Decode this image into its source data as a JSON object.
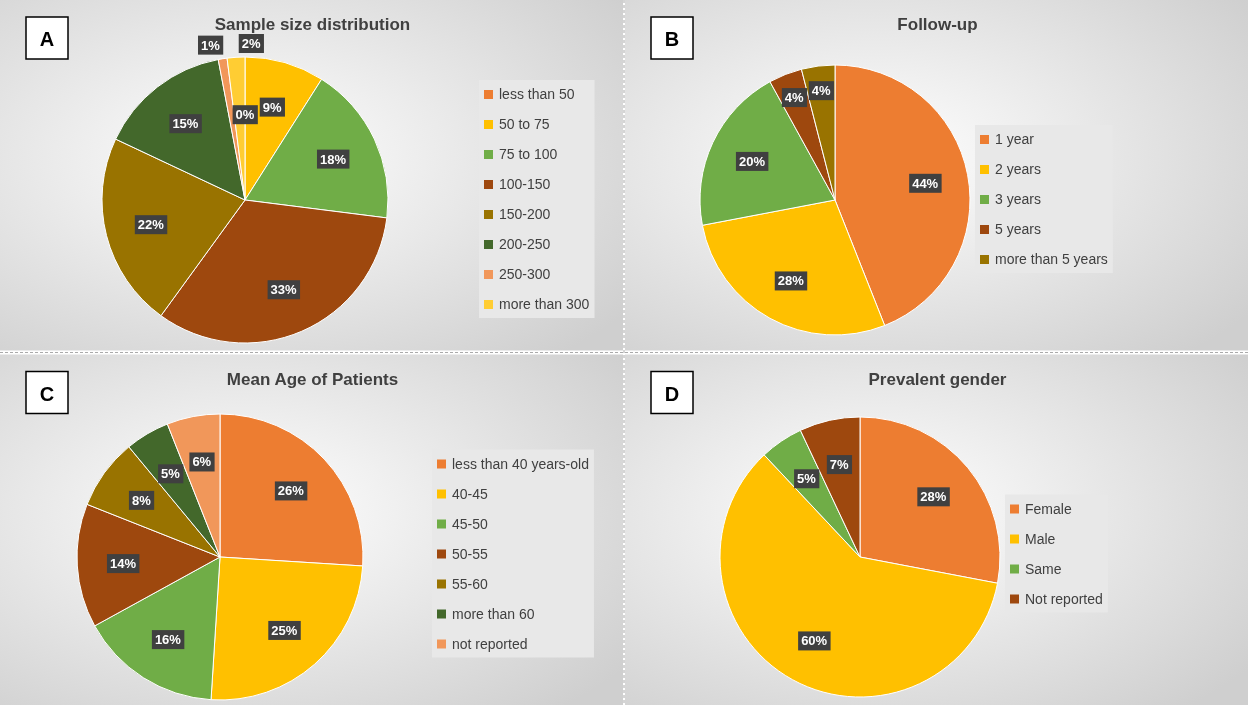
{
  "chart_data": [
    {
      "type": "pie",
      "title": "Sample size distribution",
      "annotations": [
        "A"
      ],
      "legend": "right",
      "categories": [
        "less than 50",
        "50 to 75",
        "75 to 100",
        "100-150",
        "150-200",
        "200-250",
        "250-300",
        "more than 300"
      ],
      "values": [
        0,
        9,
        18,
        33,
        22,
        15,
        1,
        2
      ],
      "value_labels": [
        "0%",
        "9%",
        "18%",
        "33%",
        "22%",
        "15%",
        "1%",
        "2%"
      ],
      "colors": [
        "#ed7d31",
        "#ffc000",
        "#70ad47",
        "#9e480e",
        "#997300",
        "#43682b",
        "#f1975a",
        "#ffcd33"
      ]
    },
    {
      "type": "pie",
      "title": "Follow-up",
      "annotations": [
        "B"
      ],
      "legend": "right",
      "categories": [
        "1 year",
        "2 years",
        "3 years",
        "5 years",
        "more than 5 years"
      ],
      "values": [
        44,
        28,
        20,
        4,
        4
      ],
      "value_labels": [
        "44%",
        "28%",
        "20%",
        "4%",
        "4%"
      ],
      "colors": [
        "#ed7d31",
        "#ffc000",
        "#70ad47",
        "#9e480e",
        "#997300"
      ]
    },
    {
      "type": "pie",
      "title": "Mean Age of Patients",
      "annotations": [
        "C"
      ],
      "legend": "right",
      "categories": [
        "less than 40 years-old",
        "40-45",
        "45-50",
        "50-55",
        "55-60",
        "more than 60",
        "not reported"
      ],
      "values": [
        26,
        25,
        16,
        14,
        8,
        5,
        6
      ],
      "value_labels": [
        "26%",
        "25%",
        "16%",
        "14%",
        "8%",
        "5%",
        "6%"
      ],
      "colors": [
        "#ed7d31",
        "#ffc000",
        "#70ad47",
        "#9e480e",
        "#997300",
        "#43682b",
        "#f1975a"
      ]
    },
    {
      "type": "pie",
      "title": "Prevalent gender",
      "annotations": [
        "D"
      ],
      "legend": "right",
      "categories": [
        "Female",
        "Male",
        "Same",
        "Not reported"
      ],
      "values": [
        28,
        60,
        5,
        7
      ],
      "value_labels": [
        "28%",
        "60%",
        "5%",
        "7%"
      ],
      "colors": [
        "#ed7d31",
        "#ffc000",
        "#70ad47",
        "#9e480e"
      ]
    }
  ]
}
